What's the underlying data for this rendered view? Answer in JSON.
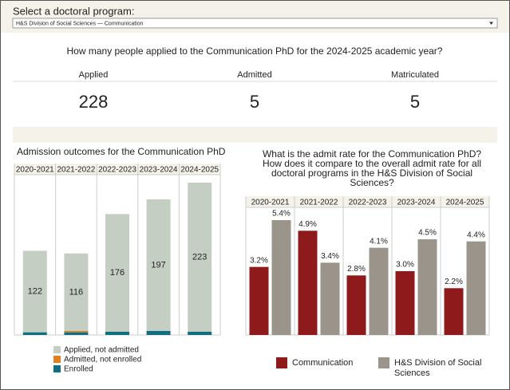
{
  "selector": {
    "label": "Select a doctoral program:",
    "value": "H&S Division of Social Sciences — Communication"
  },
  "question": "How many people applied to the Communication PhD for the 2024-2025 academic year?",
  "stats": [
    {
      "label": "Applied",
      "value": "228"
    },
    {
      "label": "Admitted",
      "value": "5"
    },
    {
      "label": "Matriculated",
      "value": "5"
    }
  ],
  "chart_data": [
    {
      "type": "bar",
      "stacked": true,
      "title": "Admission outcomes for the Communication PhD",
      "categories": [
        "2020-2021",
        "2021-2022",
        "2022-2023",
        "2023-2024",
        "2024-2025"
      ],
      "series": [
        {
          "name": "Applied, not admitted",
          "color": "#c5cec3",
          "values": [
            122,
            116,
            176,
            197,
            223
          ],
          "labeled": true
        },
        {
          "name": "Admitted, not enrolled",
          "color": "#e0801f",
          "values": [
            0,
            2,
            0,
            0,
            0
          ]
        },
        {
          "name": "Enrolled",
          "color": "#0f6f80",
          "values": [
            4,
            4,
            5,
            6,
            5
          ]
        }
      ]
    },
    {
      "type": "bar",
      "stacked": false,
      "title": "What is the admit rate for the Communication PhD?  How does it compare to the overall admit rate for all doctoral programs in the H&S Division of Social Sciences?",
      "categories": [
        "2020-2021",
        "2021-2022",
        "2022-2023",
        "2023-2024",
        "2024-2025"
      ],
      "series": [
        {
          "name": "Communication",
          "color": "#8e1a1c",
          "values": [
            3.2,
            4.9,
            2.8,
            3.0,
            2.2
          ],
          "value_labels": [
            "3.2%",
            "4.9%",
            "2.8%",
            "3.0%",
            "2.2%"
          ]
        },
        {
          "name": "H&S Division of Social Sciences",
          "color": "#9a948b",
          "values": [
            5.4,
            3.4,
            4.1,
            4.5,
            4.4
          ],
          "value_labels": [
            "5.4%",
            "3.4%",
            "4.1%",
            "4.5%",
            "4.4%"
          ]
        }
      ]
    }
  ]
}
